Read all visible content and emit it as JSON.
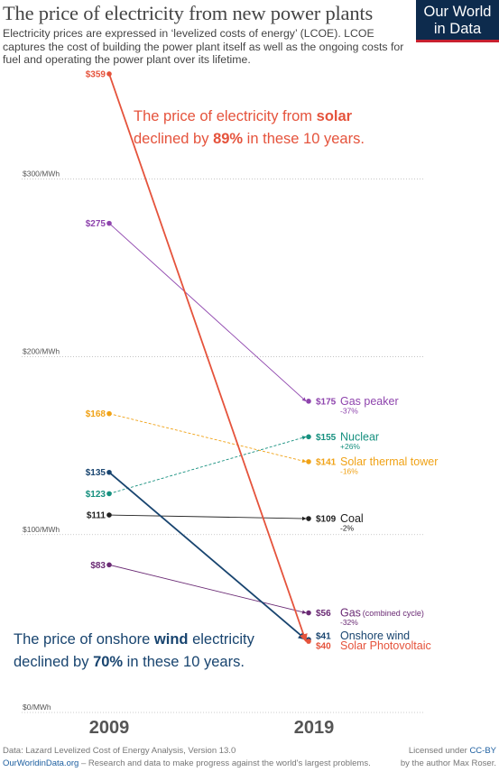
{
  "header": {
    "title": "The price of electricity from new power plants",
    "subtitle": "Electricity prices are expressed in ‘levelized costs of energy’ (LCOE). LCOE captures the cost of building the power plant itself as well as the ongoing costs for fuel and operating the power plant over its lifetime."
  },
  "logo": {
    "line1": "Our World",
    "line2": "in Data"
  },
  "footer": {
    "source": "Data: Lazard Levelized Cost of Energy Analysis, Version 13.0",
    "site": "OurWorldinData.org",
    "tagline": " – Research and data to make progress against the world's largest problems.",
    "license_prefix": "Licensed under ",
    "license_link": "CC-BY",
    "author": "by the author Max Roser."
  },
  "colors": {
    "solar": "#e5533c",
    "gas_peaker": "#8e44ad",
    "nuclear": "#16907f",
    "solar_thermal": "#f0a216",
    "coal": "#222222",
    "gas_cc": "#6a2a74",
    "wind": "#18446f",
    "axis_text": "#555555",
    "grid": "#bbbbbb"
  },
  "chart_data": {
    "type": "slope",
    "x": [
      "2009",
      "2019"
    ],
    "ylim": [
      0,
      359
    ],
    "y_ticks": [
      {
        "value": 0,
        "label": "$0/MWh"
      },
      {
        "value": 100,
        "label": "$100/MWh"
      },
      {
        "value": 200,
        "label": "$200/MWh"
      },
      {
        "value": 300,
        "label": "$300/MWh"
      }
    ],
    "series": [
      {
        "key": "gas_peaker",
        "name": "Gas peaker",
        "start": 275,
        "end": 175,
        "start_label": "$275",
        "end_label": "$175",
        "change": "-37%"
      },
      {
        "key": "nuclear",
        "name": "Nuclear",
        "start": 123,
        "end": 155,
        "start_label": "$123",
        "end_label": "$155",
        "change": "+26%"
      },
      {
        "key": "solar_thermal",
        "name": "Solar thermal tower",
        "start": 168,
        "end": 141,
        "start_label": "$168",
        "end_label": "$141",
        "change": "-16%"
      },
      {
        "key": "coal",
        "name": "Coal",
        "start": 111,
        "end": 109,
        "start_label": "$111",
        "end_label": "$109",
        "change": "-2%"
      },
      {
        "key": "gas_cc",
        "name": "Gas",
        "name_suffix": "(combined cycle)",
        "start": 83,
        "end": 56,
        "start_label": "$83",
        "end_label": "$56",
        "change": "-32%"
      },
      {
        "key": "wind",
        "name": "Onshore wind",
        "start": 135,
        "end": 41,
        "start_label": "$135",
        "end_label": "$41",
        "change": ""
      },
      {
        "key": "solar",
        "name": "Solar Photovoltaic",
        "start": 359,
        "end": 40,
        "start_label": "$359",
        "end_label": "$40",
        "change": ""
      }
    ],
    "annotations": {
      "solar": [
        "The price of electricity from ",
        "solar",
        "declined by ",
        "89%",
        " in these 10 years."
      ],
      "wind": [
        "The price of onshore ",
        "wind",
        " electricity",
        "declined by ",
        "70%",
        " in these 10 years."
      ]
    }
  }
}
